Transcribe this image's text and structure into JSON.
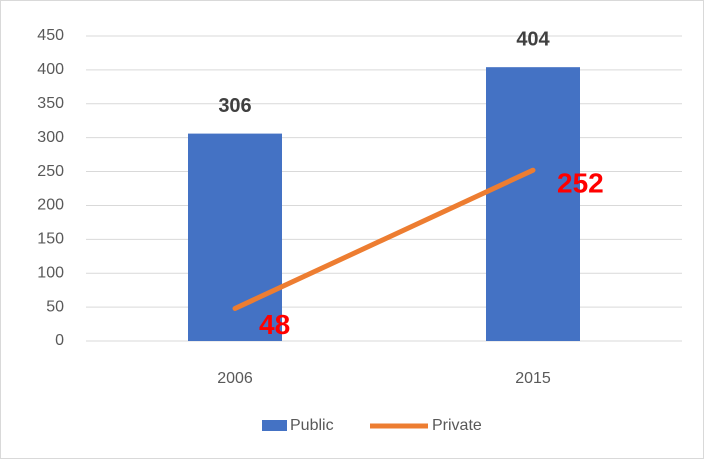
{
  "chart_data": {
    "type": "bar",
    "categories": [
      "2006",
      "2015"
    ],
    "series": [
      {
        "name": "Public",
        "type": "bar",
        "color": "#4472c4",
        "label_color": "#404040",
        "values": [
          306,
          404
        ]
      },
      {
        "name": "Private",
        "type": "line",
        "color": "#ed7d31",
        "label_color": "#ff0000",
        "values": [
          48,
          252
        ]
      }
    ],
    "ylim": [
      0,
      450
    ],
    "yticks": [
      0,
      50,
      100,
      150,
      200,
      250,
      300,
      350,
      400,
      450
    ],
    "grid": true,
    "legend": "bottom"
  }
}
